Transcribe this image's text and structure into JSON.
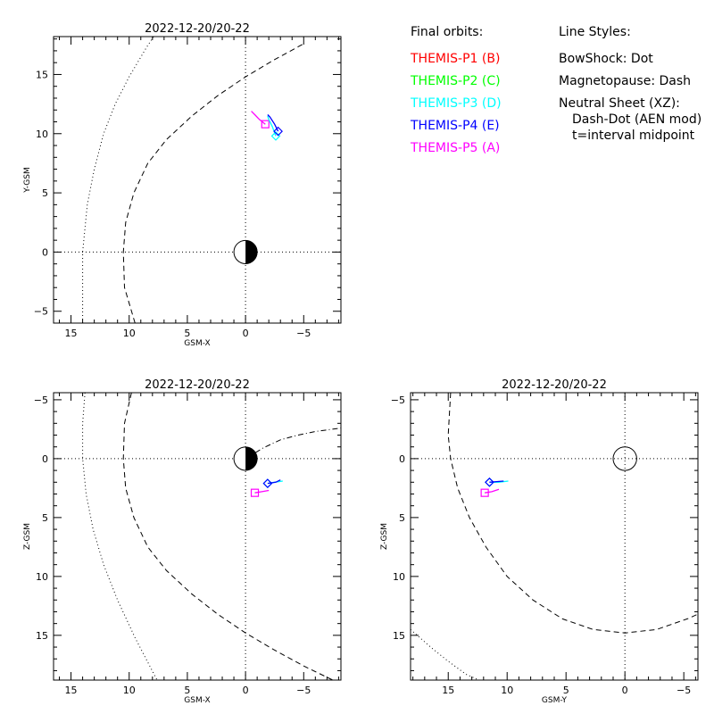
{
  "legend": {
    "orbits_header": "Final orbits:",
    "styles_header": "Line Styles:",
    "orbits": [
      {
        "label": "THEMIS-P1 (B)",
        "color": "#ff0000"
      },
      {
        "label": "THEMIS-P2 (C)",
        "color": "#00ff00"
      },
      {
        "label": "THEMIS-P3 (D)",
        "color": "#00ffff"
      },
      {
        "label": "THEMIS-P4 (E)",
        "color": "#0000ff"
      },
      {
        "label": "THEMIS-P5 (A)",
        "color": "#ff00ff"
      }
    ],
    "styles": [
      "BowShock: Dot",
      "Magnetopause: Dash",
      "Neutral Sheet (XZ):",
      "Dash-Dot (AEN mod)",
      "t=interval midpoint"
    ]
  },
  "chart_data": [
    {
      "type": "line",
      "title": "2022-12-20/20-22",
      "xlabel": "GSM-X",
      "ylabel": "Y-GSM",
      "xlim": [
        16.5,
        -8.2
      ],
      "ylim": [
        18.2,
        -6.0
      ],
      "xticks": [
        15,
        10,
        5,
        0,
        -5
      ],
      "yticks": [
        -5,
        0,
        5,
        10,
        15
      ],
      "earth": "dayside",
      "series": [
        {
          "kind": "bowshock",
          "style": "dot",
          "x": [
            14.0,
            14.0,
            13.6,
            13.0,
            12.2,
            11.2,
            10.0,
            8.5,
            7.9
          ],
          "y": [
            -6.0,
            0.0,
            4.0,
            7.0,
            10.0,
            12.5,
            14.8,
            17.3,
            18.2
          ]
        },
        {
          "kind": "magnetopause",
          "style": "dash",
          "x": [
            9.5,
            10.4,
            10.5,
            10.3,
            9.6,
            8.4,
            6.8,
            4.6,
            2.4,
            0.0,
            -2.4,
            -5.0
          ],
          "y": [
            -6.0,
            -3.0,
            0.0,
            2.5,
            5.0,
            7.5,
            9.5,
            11.5,
            13.2,
            14.8,
            16.2,
            17.6
          ]
        },
        {
          "kind": "orbit",
          "probe": "P5",
          "color": "#ff00ff",
          "x": [
            -1.7,
            -1.2,
            -0.8,
            -0.5
          ],
          "y": [
            10.8,
            11.2,
            11.6,
            11.9
          ],
          "marker": "square"
        },
        {
          "kind": "orbit",
          "probe": "P3",
          "color": "#00ffff",
          "x": [
            -2.6,
            -2.3,
            -2.0,
            -1.9
          ],
          "y": [
            9.8,
            10.6,
            11.2,
            11.5
          ],
          "marker": "diamond"
        },
        {
          "kind": "orbit",
          "probe": "P4",
          "color": "#0000ff",
          "x": [
            -2.8,
            -2.5,
            -2.1,
            -1.9
          ],
          "y": [
            10.2,
            10.8,
            11.4,
            11.6
          ],
          "marker": "diamond"
        }
      ]
    },
    {
      "type": "line",
      "title": "2022-12-20/20-22",
      "xlabel": "GSM-X",
      "ylabel": "Z-GSM",
      "xlim": [
        16.5,
        -8.2
      ],
      "ylim": [
        -5.6,
        18.8
      ],
      "xticks": [
        15,
        10,
        5,
        0,
        -5
      ],
      "yticks": [
        -5,
        0,
        5,
        10,
        15
      ],
      "earth": "dayside",
      "series": [
        {
          "kind": "bowshock",
          "style": "dot",
          "x": [
            13.8,
            14.0,
            14.0,
            13.7,
            13.1,
            12.2,
            11.0,
            9.5,
            7.6
          ],
          "y": [
            -5.6,
            -3.0,
            0.0,
            3.0,
            6.0,
            9.0,
            12.0,
            15.2,
            18.8
          ]
        },
        {
          "kind": "magnetopause",
          "style": "dash",
          "x": [
            9.8,
            10.4,
            10.5,
            10.3,
            9.6,
            8.4,
            6.8,
            4.6,
            2.4,
            0.0,
            -2.4,
            -5.0,
            -7.5
          ],
          "y": [
            -5.6,
            -3.0,
            0.0,
            2.5,
            5.0,
            7.5,
            9.5,
            11.5,
            13.2,
            14.8,
            16.2,
            17.6,
            18.8
          ]
        },
        {
          "kind": "neutral_sheet",
          "style": "dashdot",
          "x": [
            0.0,
            -1.5,
            -3.0,
            -4.5,
            -6.0,
            -8.2
          ],
          "y": [
            0.0,
            -0.9,
            -1.6,
            -2.0,
            -2.3,
            -2.6
          ]
        },
        {
          "kind": "orbit",
          "probe": "P5",
          "color": "#ff00ff",
          "x": [
            -0.8,
            -1.4,
            -2.0
          ],
          "y": [
            2.9,
            2.8,
            2.7
          ],
          "marker": "square"
        },
        {
          "kind": "orbit",
          "probe": "P3",
          "color": "#00ffff",
          "x": [
            -1.9,
            -2.5,
            -3.2
          ],
          "y": [
            2.1,
            2.0,
            1.9
          ],
          "marker": "diamond"
        },
        {
          "kind": "orbit",
          "probe": "P4",
          "color": "#0000ff",
          "x": [
            -1.9,
            -2.6,
            -3.0
          ],
          "y": [
            2.1,
            2.0,
            1.8
          ],
          "marker": "diamond"
        }
      ]
    },
    {
      "type": "line",
      "title": "2022-12-20/20-22",
      "xlabel": "GSM-Y",
      "ylabel": "Z-GSM",
      "xlim": [
        18.2,
        -6.2
      ],
      "ylim": [
        -5.6,
        18.8
      ],
      "xticks": [
        15,
        10,
        5,
        0,
        -5
      ],
      "yticks": [
        -5,
        0,
        5,
        10,
        15
      ],
      "earth": "full",
      "series": [
        {
          "kind": "bowshock",
          "style": "dot",
          "x": [
            18.2,
            16.5,
            15.0,
            13.5,
            12.4
          ],
          "y": [
            14.5,
            16.0,
            17.2,
            18.3,
            18.8
          ]
        },
        {
          "kind": "magnetopause",
          "style": "dash",
          "x": [
            14.8,
            15.0,
            14.8,
            14.2,
            13.2,
            11.8,
            10.0,
            7.8,
            5.3,
            2.7,
            0.0,
            -2.7,
            -5.3,
            -6.2
          ],
          "y": [
            -5.6,
            -2.0,
            0.0,
            2.5,
            5.0,
            7.5,
            10.0,
            12.0,
            13.6,
            14.5,
            14.8,
            14.5,
            13.6,
            13.2
          ]
        },
        {
          "kind": "orbit",
          "probe": "P5",
          "color": "#ff00ff",
          "x": [
            11.9,
            11.3,
            10.7
          ],
          "y": [
            2.9,
            2.8,
            2.6
          ],
          "marker": "square"
        },
        {
          "kind": "orbit",
          "probe": "P3",
          "color": "#00ffff",
          "x": [
            11.5,
            10.7,
            9.9
          ],
          "y": [
            2.0,
            2.0,
            1.9
          ],
          "marker": "diamond"
        },
        {
          "kind": "orbit",
          "probe": "P4",
          "color": "#0000ff",
          "x": [
            11.5,
            10.9,
            10.3
          ],
          "y": [
            2.0,
            1.95,
            1.9
          ],
          "marker": "diamond"
        }
      ]
    }
  ]
}
